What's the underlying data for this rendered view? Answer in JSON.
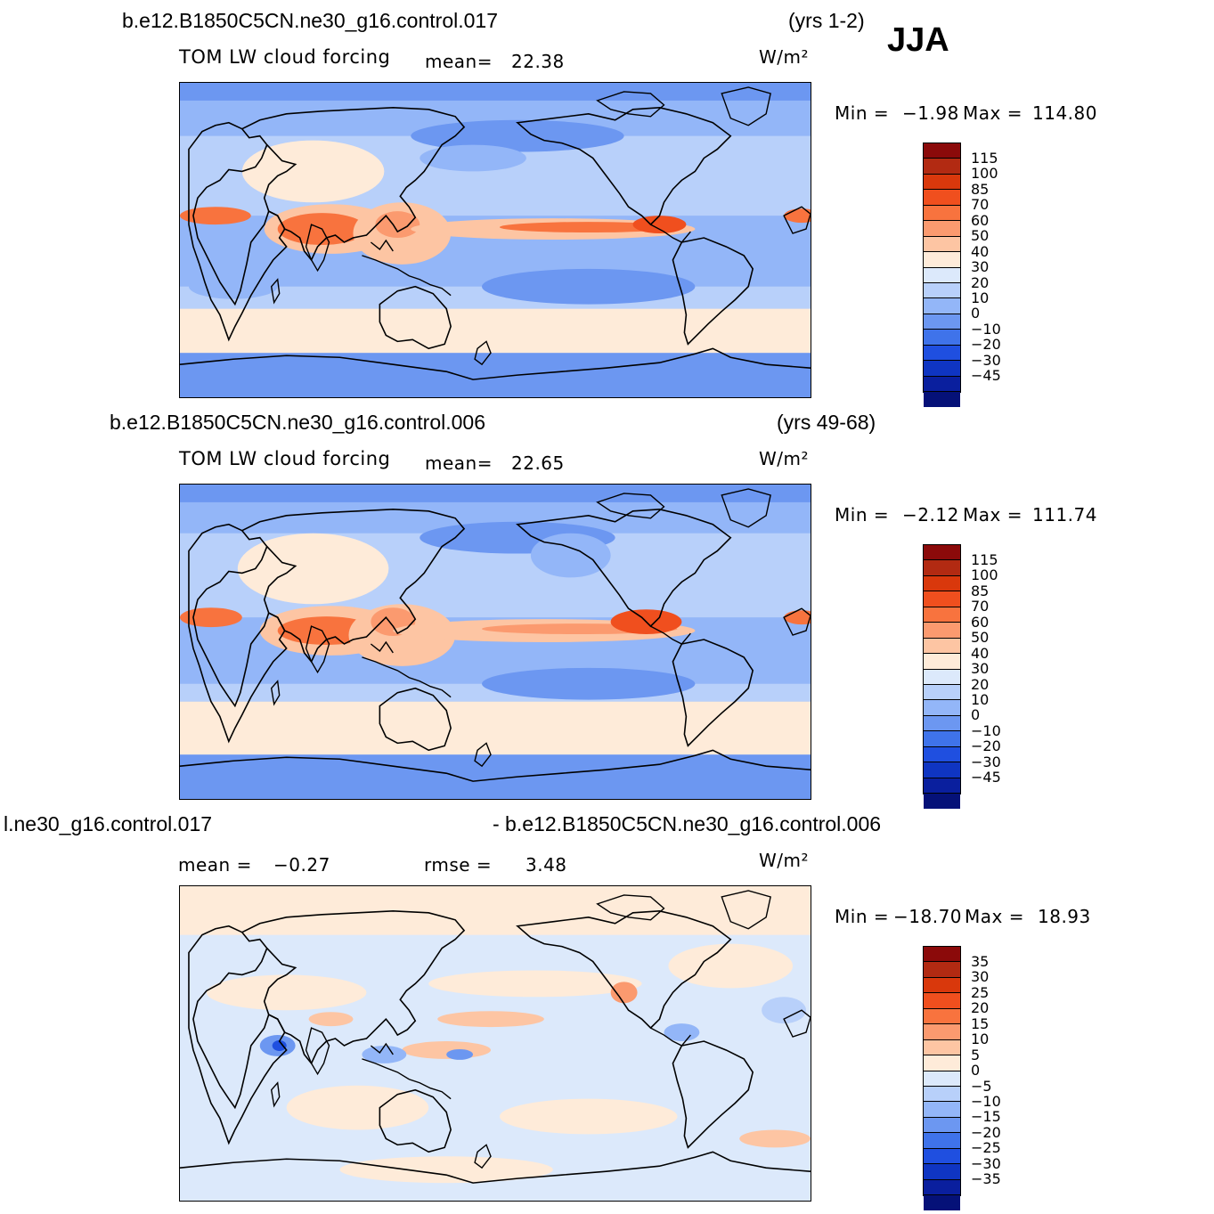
{
  "season": "JJA",
  "panels": [
    {
      "case": "b.e12.B1850C5CN.ne30_g16.control.017",
      "years": "(yrs 1-2)",
      "variable": "TOM LW cloud forcing",
      "mean_label": "mean=",
      "mean_value": "22.38",
      "units": "W/m²",
      "min_label": "Min =",
      "min_value": "−1.98",
      "max_label": "Max =",
      "max_value": "114.80",
      "colorbar": {
        "colors": [
          "#8b0a0a",
          "#b22a12",
          "#d9380c",
          "#f04f1e",
          "#f8733e",
          "#fb9a6f",
          "#fdc5a3",
          "#feebd9",
          "#dce9fb",
          "#b8d0fa",
          "#93b6f8",
          "#6c97f1",
          "#3f73ea",
          "#1f4fe0",
          "#0f35c2",
          "#0a1f9e",
          "#051178"
        ],
        "labels": [
          "115",
          "100",
          "85",
          "70",
          "60",
          "50",
          "40",
          "30",
          "20",
          "10",
          "0",
          "−10",
          "−20",
          "−30",
          "−45"
        ]
      }
    },
    {
      "case": "b.e12.B1850C5CN.ne30_g16.control.006",
      "years": "(yrs 49-68)",
      "variable": "TOM LW cloud forcing",
      "mean_label": "mean=",
      "mean_value": "22.65",
      "units": "W/m²",
      "min_label": "Min =",
      "min_value": "−2.12",
      "max_label": "Max =",
      "max_value": "111.74",
      "colorbar": {
        "colors": [
          "#8b0a0a",
          "#b22a12",
          "#d9380c",
          "#f04f1e",
          "#f8733e",
          "#fb9a6f",
          "#fdc5a3",
          "#feebd9",
          "#dce9fb",
          "#b8d0fa",
          "#93b6f8",
          "#6c97f1",
          "#3f73ea",
          "#1f4fe0",
          "#0f35c2",
          "#0a1f9e",
          "#051178"
        ],
        "labels": [
          "115",
          "100",
          "85",
          "70",
          "60",
          "50",
          "40",
          "30",
          "20",
          "10",
          "0",
          "−10",
          "−20",
          "−30",
          "−45"
        ]
      }
    },
    {
      "case_left": "l.ne30_g16.control.017",
      "case_right": "- b.e12.B1850C5CN.ne30_g16.control.006",
      "mean_label": "mean =",
      "mean_value": "−0.27",
      "rmse_label": "rmse =",
      "rmse_value": "3.48",
      "units": "W/m²",
      "min_label": "Min =",
      "min_value": "−18.70",
      "max_label": "Max =",
      "max_value": "18.93",
      "colorbar": {
        "colors": [
          "#8b0a0a",
          "#b22a12",
          "#d9380c",
          "#f04f1e",
          "#f8733e",
          "#fb9a6f",
          "#fdc5a3",
          "#feebd9",
          "#dce9fb",
          "#b8d0fa",
          "#93b6f8",
          "#6c97f1",
          "#3f73ea",
          "#1f4fe0",
          "#0f35c2",
          "#0a1f9e",
          "#051178"
        ],
        "labels": [
          "35",
          "30",
          "25",
          "20",
          "15",
          "10",
          "5",
          "0",
          "−5",
          "−10",
          "−15",
          "−20",
          "−25",
          "−30",
          "−35"
        ]
      }
    }
  ]
}
